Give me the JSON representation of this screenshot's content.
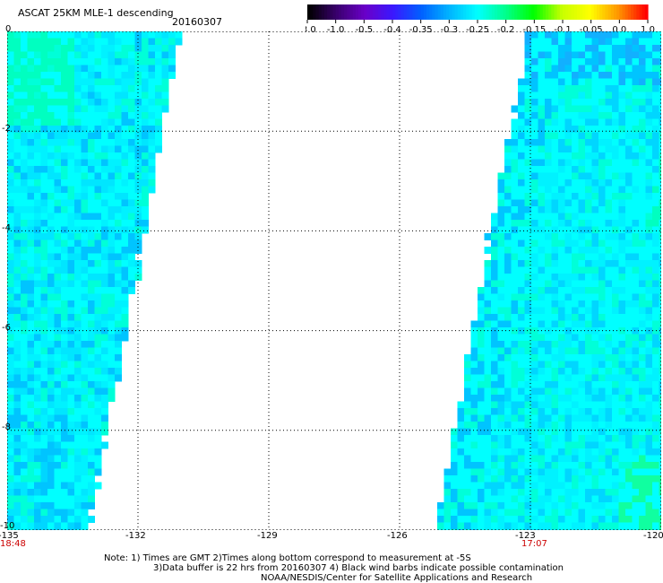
{
  "header": {
    "title": "ASCAT 25KM MLE-1 descending",
    "date": "20160307"
  },
  "colorbar": {
    "labels": [
      "-3.0",
      "-1.0",
      "-0.5",
      "-0.4",
      "-0.35",
      "-0.3",
      "-0.25",
      "-0.2",
      "-0.15",
      "-0.1",
      "-0.05",
      "0.0",
      "1.0"
    ],
    "colors": [
      "#000000",
      "#3a006e",
      "#6a00c8",
      "#3a18ff",
      "#0060ff",
      "#00b4ff",
      "#00ffff",
      "#00ff8c",
      "#00ff00",
      "#c8ff00",
      "#ffff00",
      "#ff9600",
      "#ff0000"
    ]
  },
  "map": {
    "lon_ticks": [
      "-135",
      "-132",
      "-129",
      "-126",
      "-123",
      "-120"
    ],
    "lat_ticks": [
      "0",
      "-2",
      "-4",
      "-6",
      "-8",
      "-10"
    ],
    "lon_range": [
      -135,
      -120
    ],
    "lat_range": [
      -10,
      0
    ],
    "times": {
      "left": "18:48",
      "right": "17:07"
    }
  },
  "notes": {
    "line1": "Note: 1) Times are GMT 2)Times along bottom correspond to measurement at -5S",
    "line2": "3)Data buffer is 22 hrs from 20160307 4) Black wind barbs indicate possible contamination",
    "line3": "NOAA/NESDIS/Center for Satellite Applications and Research"
  }
}
